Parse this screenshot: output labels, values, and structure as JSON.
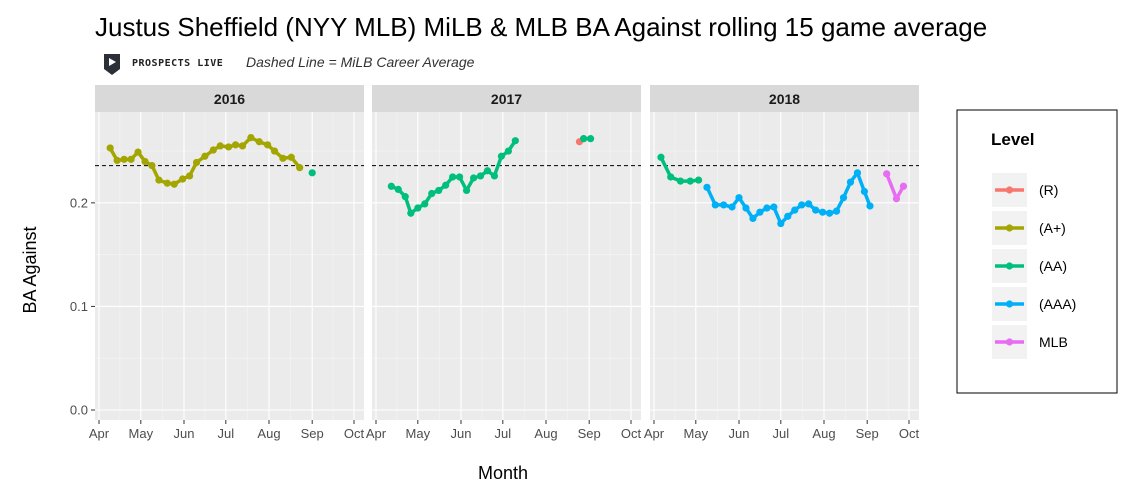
{
  "header": {
    "title": "Justus Sheffield (NYY MLB) MiLB & MLB BA Against rolling 15 game average",
    "brand_text": "PROSPECTS LIVE",
    "caption": "Dashed Line = MiLB Career Average"
  },
  "chart_data": {
    "type": "line",
    "title": "Justus Sheffield (NYY MLB) MiLB & MLB BA Against rolling 15 game average",
    "xlabel": "Month",
    "ylabel": "BA Against",
    "ylim": [
      0,
      0.28
    ],
    "y_ticks": [
      0.0,
      0.1,
      0.2
    ],
    "y_tick_labels": [
      "0.0",
      "0.1",
      "0.2"
    ],
    "x_tick_labels": [
      "Apr",
      "May",
      "Jun",
      "Jul",
      "Aug",
      "Sep",
      "Oct"
    ],
    "reference_line": {
      "style": "dashed",
      "value": 0.236
    },
    "grid": true,
    "legend": {
      "title": "Level",
      "position": "right",
      "entries": [
        {
          "key": "R",
          "label": "(R)",
          "color": "#F8766D"
        },
        {
          "key": "A+",
          "label": "(A+)",
          "color": "#A3A500"
        },
        {
          "key": "AA",
          "label": "(AA)",
          "color": "#00BF7D"
        },
        {
          "key": "AAA",
          "label": "(AAA)",
          "color": "#00B0F6"
        },
        {
          "key": "MLB",
          "label": "MLB",
          "color": "#E76BF3"
        }
      ]
    },
    "panels": [
      {
        "strip": "2016",
        "series": [
          {
            "level": "A+",
            "points": [
              [
                "2016-04-09",
                0.253
              ],
              [
                "2016-04-14",
                0.241
              ],
              [
                "2016-04-19",
                0.242
              ],
              [
                "2016-04-24",
                0.242
              ],
              [
                "2016-04-29",
                0.249
              ],
              [
                "2016-05-04",
                0.24
              ],
              [
                "2016-05-09",
                0.236
              ],
              [
                "2016-05-14",
                0.222
              ],
              [
                "2016-05-20",
                0.219
              ],
              [
                "2016-05-25",
                0.218
              ],
              [
                "2016-05-31",
                0.223
              ],
              [
                "2016-06-05",
                0.226
              ],
              [
                "2016-06-10",
                0.239
              ],
              [
                "2016-06-16",
                0.245
              ],
              [
                "2016-06-22",
                0.251
              ],
              [
                "2016-06-27",
                0.255
              ],
              [
                "2016-07-03",
                0.254
              ],
              [
                "2016-07-08",
                0.256
              ],
              [
                "2016-07-13",
                0.255
              ],
              [
                "2016-07-19",
                0.263
              ],
              [
                "2016-07-25",
                0.259
              ],
              [
                "2016-07-31",
                0.256
              ],
              [
                "2016-08-05",
                0.25
              ],
              [
                "2016-08-11",
                0.243
              ],
              [
                "2016-08-17",
                0.244
              ],
              [
                "2016-08-23",
                0.234
              ]
            ]
          },
          {
            "level": "AA",
            "points": [
              [
                "2016-09-01",
                0.229
              ]
            ]
          }
        ]
      },
      {
        "strip": "2017",
        "series": [
          {
            "level": "AA",
            "points": [
              [
                "2017-04-12",
                0.216
              ],
              [
                "2017-04-17",
                0.213
              ],
              [
                "2017-04-22",
                0.206
              ],
              [
                "2017-04-26",
                0.19
              ],
              [
                "2017-05-01",
                0.195
              ],
              [
                "2017-05-06",
                0.199
              ],
              [
                "2017-05-11",
                0.209
              ],
              [
                "2017-05-16",
                0.212
              ],
              [
                "2017-05-21",
                0.217
              ],
              [
                "2017-05-26",
                0.225
              ],
              [
                "2017-05-31",
                0.225
              ],
              [
                "2017-06-05",
                0.212
              ],
              [
                "2017-06-10",
                0.224
              ],
              [
                "2017-06-15",
                0.226
              ],
              [
                "2017-06-20",
                0.231
              ],
              [
                "2017-06-25",
                0.226
              ],
              [
                "2017-06-30",
                0.245
              ],
              [
                "2017-07-05",
                0.25
              ],
              [
                "2017-07-10",
                0.26
              ]
            ]
          },
          {
            "level": "R",
            "points": [
              [
                "2017-08-25",
                0.259
              ],
              [
                "2017-08-28",
                0.262
              ]
            ]
          },
          {
            "level": "AA",
            "points": [
              [
                "2017-08-28",
                0.262
              ],
              [
                "2017-09-02",
                0.262
              ]
            ]
          }
        ]
      },
      {
        "strip": "2018",
        "series": [
          {
            "level": "AA",
            "points": [
              [
                "2018-04-06",
                0.244
              ],
              [
                "2018-04-13",
                0.225
              ],
              [
                "2018-04-20",
                0.221
              ],
              [
                "2018-04-27",
                0.221
              ],
              [
                "2018-05-03",
                0.222
              ]
            ]
          },
          {
            "level": "AAA",
            "points": [
              [
                "2018-05-09",
                0.215
              ],
              [
                "2018-05-15",
                0.198
              ],
              [
                "2018-05-21",
                0.198
              ],
              [
                "2018-05-27",
                0.196
              ],
              [
                "2018-06-01",
                0.205
              ],
              [
                "2018-06-06",
                0.195
              ],
              [
                "2018-06-11",
                0.185
              ],
              [
                "2018-06-16",
                0.191
              ],
              [
                "2018-06-21",
                0.195
              ],
              [
                "2018-06-26",
                0.196
              ],
              [
                "2018-07-01",
                0.18
              ],
              [
                "2018-07-06",
                0.187
              ],
              [
                "2018-07-11",
                0.193
              ],
              [
                "2018-07-16",
                0.198
              ],
              [
                "2018-07-21",
                0.199
              ],
              [
                "2018-07-26",
                0.193
              ],
              [
                "2018-07-31",
                0.191
              ],
              [
                "2018-08-05",
                0.19
              ],
              [
                "2018-08-10",
                0.192
              ],
              [
                "2018-08-15",
                0.205
              ],
              [
                "2018-08-20",
                0.22
              ],
              [
                "2018-08-25",
                0.229
              ],
              [
                "2018-08-30",
                0.211
              ],
              [
                "2018-09-03",
                0.197
              ]
            ]
          },
          {
            "level": "MLB",
            "points": [
              [
                "2018-09-15",
                0.228
              ],
              [
                "2018-09-22",
                0.204
              ],
              [
                "2018-09-27",
                0.216
              ]
            ]
          }
        ]
      }
    ]
  }
}
